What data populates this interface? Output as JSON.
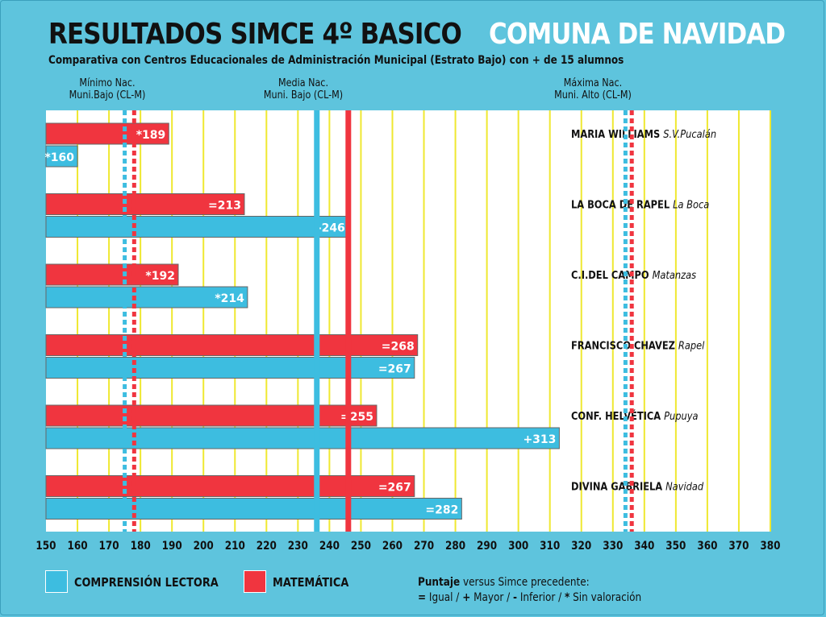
{
  "chart_data": {
    "type": "bar",
    "orientation": "horizontal",
    "title": "RESULTADOS SIMCE 4º BASICO",
    "title_highlight": "COMUNA DE NAVIDAD",
    "subtitle": "Comparativa con Centros Educacionales de Administración Municipal (Estrato Bajo) con + de 15 alumnos",
    "xlim": [
      150,
      380
    ],
    "x_ticks": [
      150,
      160,
      170,
      180,
      190,
      200,
      210,
      220,
      230,
      240,
      250,
      260,
      270,
      280,
      290,
      300,
      310,
      320,
      330,
      340,
      350,
      360,
      370,
      380
    ],
    "grid": true,
    "categories": [
      {
        "name": "MARIA WILLIAMS",
        "place": "S.V.Pucalán"
      },
      {
        "name": "LA BOCA DE RAPEL",
        "place": "La Boca"
      },
      {
        "name": "C.I.DEL CAMPO",
        "place": "Matanzas"
      },
      {
        "name": "FRANCISCO CHAVEZ",
        "place": "Rapel"
      },
      {
        "name": "CONF. HELVÉTICA",
        "place": "Pupuya"
      },
      {
        "name": "DIVINA GABRIELA",
        "place": "Navidad"
      }
    ],
    "series": [
      {
        "name": "MATEMÁTICA",
        "color": "#f0353f",
        "values": [
          189,
          213,
          192,
          268,
          255,
          267
        ],
        "labels": [
          "*189",
          "=213",
          "*192",
          "=268",
          "=255",
          "=267"
        ]
      },
      {
        "name": "COMPRENSIÓN LECTORA",
        "color": "#3dbde0",
        "values": [
          160,
          246,
          214,
          267,
          313,
          282
        ],
        "labels": [
          "*160",
          "-246",
          "*214",
          "=267",
          "+313",
          "=282"
        ]
      }
    ],
    "reference_lines": [
      {
        "label_1": "Mínimo Nac.",
        "label_2": "Muni.Bajo (CL-M)",
        "lectora": 175,
        "matematica": 178,
        "style": "dashed"
      },
      {
        "label_1": "Media Nac.",
        "label_2": "Muni. Bajo (CL-M)",
        "lectora": 236,
        "matematica": 246,
        "style": "solid"
      },
      {
        "label_1": "Máxima Nac.",
        "label_2": "Muni. Alto (CL-M)",
        "lectora": 334,
        "matematica": 336,
        "style": "dashed"
      }
    ],
    "legend": {
      "note_bold": "Puntaje",
      "note_line1": " versus Simce precedente:",
      "note_line2_parts": [
        {
          "b": "="
        },
        {
          "t": " Igual / "
        },
        {
          "b": "+"
        },
        {
          "t": " Mayor / "
        },
        {
          "b": "-"
        },
        {
          "t": " Inferior / "
        },
        {
          "b": "*"
        },
        {
          "t": " Sin valoración"
        }
      ]
    }
  }
}
